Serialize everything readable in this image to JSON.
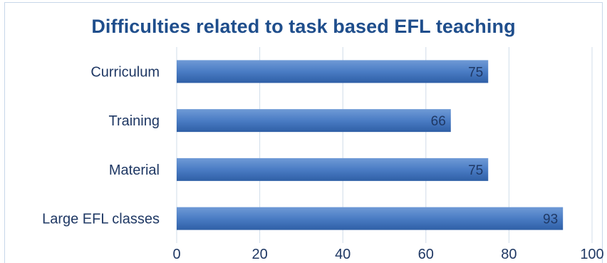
{
  "chart_data": {
    "type": "bar",
    "orientation": "horizontal",
    "title": "Difficulties related to task based EFL teaching",
    "categories": [
      "Curriculum",
      "Training",
      "Material",
      "Large EFL classes"
    ],
    "values": [
      75,
      66,
      75,
      93
    ],
    "xlim": [
      0,
      100
    ],
    "xticks": [
      "0",
      "20",
      "40",
      "60",
      "80",
      "100"
    ],
    "grid": true,
    "legend": "none",
    "bar_color": "#4a7cc4",
    "bar_color_light": "#6f9ad6",
    "bar_color_dark": "#2f5fa6"
  }
}
